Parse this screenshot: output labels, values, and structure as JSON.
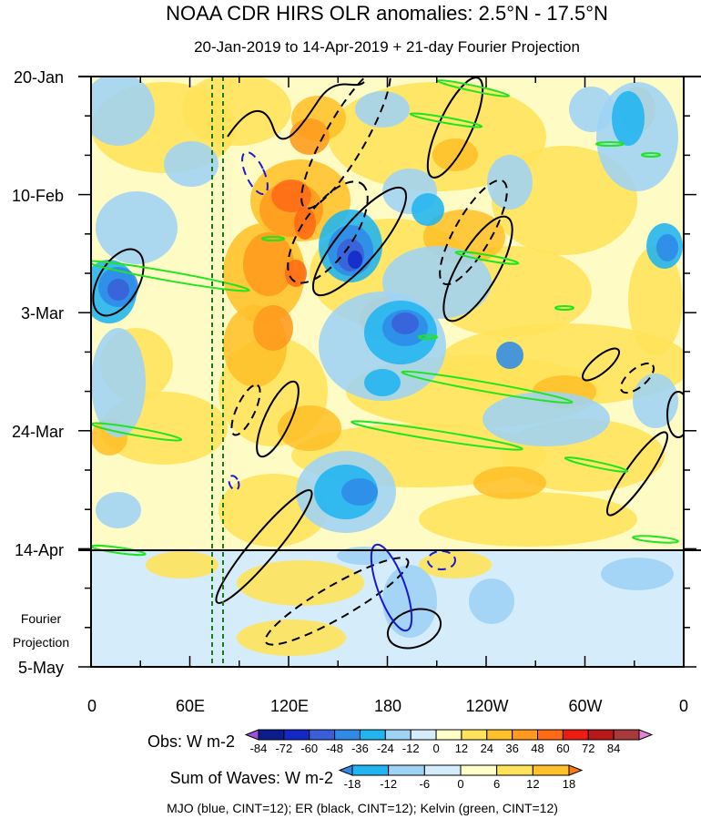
{
  "chart_data": {
    "type": "heatmap",
    "title": "NOAA CDR HIRS OLR anomalies: 2.5°N - 17.5°N",
    "subtitle": "20-Jan-2019 to 14-Apr-2019 + 21-day Fourier Projection",
    "x_ticks": [
      "0",
      "60E",
      "120E",
      "180",
      "120W",
      "60W",
      "0"
    ],
    "y_ticks": [
      "20-Jan",
      "10-Feb",
      "3-Mar",
      "24-Mar",
      "14-Apr",
      "5-May"
    ],
    "projection_label": [
      "Fourier",
      "Projection"
    ],
    "obs_colorbar": {
      "label": "Obs: W m-2",
      "levels": [
        "-84",
        "-72",
        "-60",
        "-48",
        "-36",
        "-24",
        "-12",
        "0",
        "12",
        "24",
        "36",
        "48",
        "60",
        "72",
        "84"
      ],
      "colors": [
        "#9b52d6",
        "#0c1d8e",
        "#1428c8",
        "#3a5ed8",
        "#2f8ae8",
        "#20b4f0",
        "#9fd3f5",
        "#d5ecfb",
        "#ffffc8",
        "#ffe35a",
        "#ffc02a",
        "#ff9a1e",
        "#ff6a14",
        "#ee1c10",
        "#b81818",
        "#a93a3a",
        "#e283d8"
      ]
    },
    "waves_colorbar": {
      "label": "Sum of Waves: W m-2",
      "levels": [
        "-18",
        "-12",
        "-6",
        "0",
        "6",
        "12",
        "18"
      ],
      "colors": [
        "#2f8ae8",
        "#20b4f0",
        "#9fd3f5",
        "#d5ecfb",
        "#ffffc8",
        "#ffe35a",
        "#ffc02a",
        "#ff7a14"
      ]
    },
    "footer": "MJO (blue, CINT=12); ER (black, CINT=12); Kelvin (green, CINT=12)",
    "line_colors": {
      "mjo": "#1a1ad2",
      "er": "#000000",
      "kelvin": "#1ee61e",
      "marker": "#1a7a1a"
    }
  }
}
